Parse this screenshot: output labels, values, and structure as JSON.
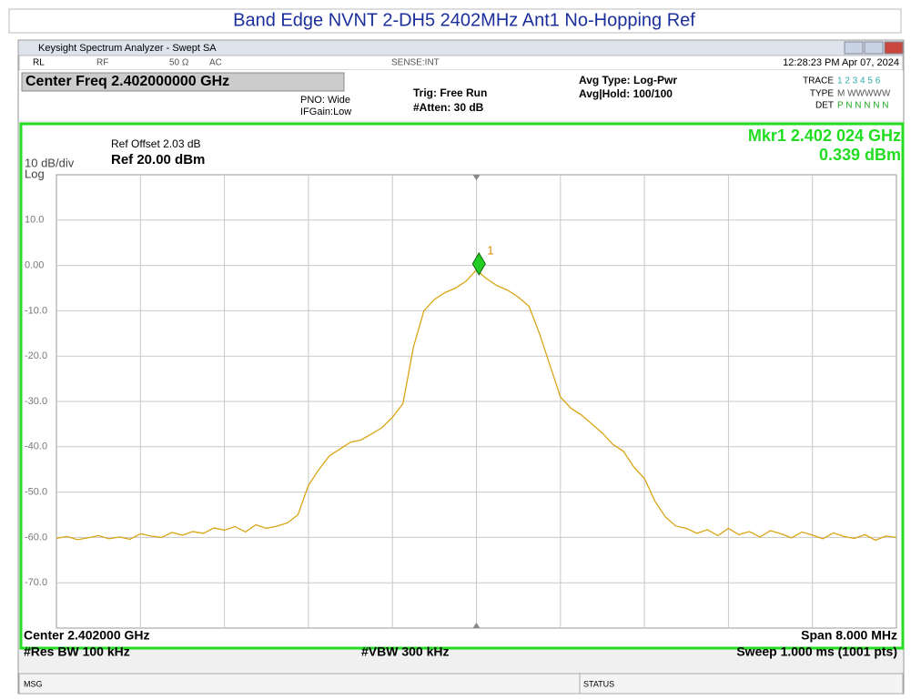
{
  "title": "Band Edge NVNT 2-DH5 2402MHz Ant1 No-Hopping Ref",
  "window": {
    "title": "Keysight Spectrum Analyzer - Swept SA",
    "status_row": {
      "rl": "RL",
      "rf": "RF",
      "impedance": "50 Ω",
      "coupling": "AC",
      "sense": "SENSE:INT",
      "datetime": "12:28:23 PM Apr 07, 2024"
    },
    "settings": {
      "center_freq": "Center Freq 2.402000000 GHz",
      "pno": "PNO: Wide",
      "ifgain": "IFGain:Low",
      "trig": "Trig: Free Run",
      "atten": "#Atten: 30 dB",
      "avg_type": "Avg Type: Log-Pwr",
      "avg_hold": "Avg|Hold: 100/100",
      "trace": "TRACE",
      "trace_nums": "1 2 3 4 5 6",
      "type": "TYPE",
      "type_val": "M WWWWW",
      "det": "DET",
      "det_val": "P N N N N N"
    },
    "footer": {
      "center": "Center 2.402000 GHz",
      "res_bw": "#Res BW 100 kHz",
      "vbw": "#VBW 300 kHz",
      "span": "Span 8.000 MHz",
      "sweep": "Sweep  1.000 ms (1001 pts)"
    },
    "msg": "MSG",
    "status": "STATUS"
  },
  "chart_data": {
    "type": "line",
    "scale": "10 dB/div",
    "scale_type": "Log",
    "ref_offset": "Ref Offset 2.03 dB",
    "ref_level": "Ref 20.00 dBm",
    "color": "#d9a514",
    "grid": true,
    "xlim": [
      2.398,
      2.406
    ],
    "ylim": [
      -80,
      20
    ],
    "yticks": [
      {
        "value": 10,
        "label": "10.0"
      },
      {
        "value": 0,
        "label": "0.00"
      },
      {
        "value": -10,
        "label": "-10.0"
      },
      {
        "value": -20,
        "label": "-20.0"
      },
      {
        "value": -30,
        "label": "-30.0"
      },
      {
        "value": -40,
        "label": "-40.0"
      },
      {
        "value": -50,
        "label": "-50.0"
      },
      {
        "value": -60,
        "label": "-60.0"
      },
      {
        "value": -70,
        "label": "-70.0"
      }
    ],
    "x": [
      2.398,
      2.3981,
      2.3982,
      2.3983,
      2.3984,
      2.3985,
      2.3986,
      2.3987,
      2.3988,
      2.3989,
      2.399,
      2.3991,
      2.3992,
      2.3993,
      2.3994,
      2.3995,
      2.3996,
      2.3997,
      2.3998,
      2.3999,
      2.4,
      2.4001,
      2.4002,
      2.4003,
      2.4004,
      2.4005,
      2.4006,
      2.4007,
      2.4008,
      2.4009,
      2.401,
      2.4011,
      2.4012,
      2.4013,
      2.4014,
      2.4015,
      2.4016,
      2.4017,
      2.4018,
      2.4019,
      2.402,
      2.4021,
      2.4022,
      2.4023,
      2.4024,
      2.4025,
      2.4026,
      2.4027,
      2.4028,
      2.4029,
      2.403,
      2.4031,
      2.4032,
      2.4033,
      2.4034,
      2.4035,
      2.4036,
      2.4037,
      2.4038,
      2.4039,
      2.404,
      2.4041,
      2.4042,
      2.4043,
      2.4044,
      2.4045,
      2.4046,
      2.4047,
      2.4048,
      2.4049,
      2.405,
      2.4051,
      2.4052,
      2.4053,
      2.4054,
      2.4055,
      2.4056,
      2.4057,
      2.4058,
      2.4059,
      2.406
    ],
    "values": [
      -60.2,
      -59.8,
      -60.5,
      -60.1,
      -59.6,
      -60.3,
      -59.9,
      -60.4,
      -59.2,
      -59.7,
      -60.0,
      -58.9,
      -59.5,
      -58.7,
      -59.1,
      -57.9,
      -58.4,
      -57.6,
      -58.8,
      -57.2,
      -58.0,
      -57.5,
      -56.8,
      -55.0,
      -48.5,
      -45.0,
      -42.0,
      -40.5,
      -39.0,
      -38.5,
      -37.2,
      -35.8,
      -33.5,
      -30.5,
      -18.0,
      -10.0,
      -7.5,
      -6.0,
      -5.0,
      -3.5,
      -1.0,
      -3.0,
      -4.5,
      -5.5,
      -7.0,
      -9.0,
      -15.0,
      -22.0,
      -29.0,
      -31.5,
      -33.0,
      -35.0,
      -37.0,
      -39.5,
      -41.0,
      -44.5,
      -47.0,
      -52.0,
      -55.5,
      -57.5,
      -58.0,
      -59.1,
      -58.3,
      -59.6,
      -58.0,
      -59.4,
      -58.7,
      -59.9,
      -58.5,
      -59.2,
      -60.1,
      -58.8,
      -59.5,
      -60.3,
      -59.0,
      -59.8,
      -60.2,
      -59.4,
      -60.6,
      -59.7,
      -60.0
    ],
    "marker": {
      "label": "1",
      "x": 2.402024,
      "value": 0.339,
      "x_label": "Mkr1 2.402 024 GHz",
      "value_label": "0.339 dBm",
      "color": "#22cc22"
    }
  }
}
